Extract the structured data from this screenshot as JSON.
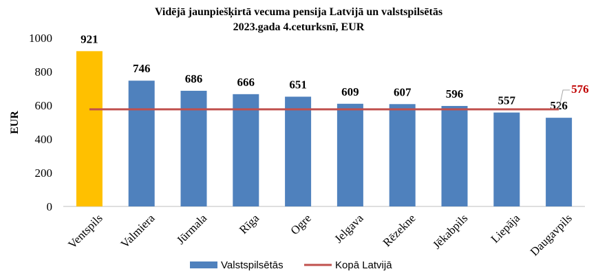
{
  "chart_data": {
    "type": "bar",
    "title": "Vidējā jaunpiešķirtā vecuma pensija Latvijā un valstspilsētās",
    "subtitle": "2023.gada 4.ceturksnī, EUR",
    "ylabel": "EUR",
    "xlabel": "",
    "ylim": [
      0,
      1000
    ],
    "yticks": [
      0,
      200,
      400,
      600,
      800,
      1000
    ],
    "categories": [
      "Ventspils",
      "Valmiera",
      "Jūrmala",
      "Rīga",
      "Ogre",
      "Jelgava",
      "Rēzekne",
      "Jēkabpils",
      "Liepāja",
      "Daugavpils"
    ],
    "series": [
      {
        "name": "Valstspilsētās",
        "values": [
          921,
          746,
          686,
          666,
          651,
          609,
          607,
          596,
          557,
          526
        ]
      }
    ],
    "reference_line": {
      "name": "Kopā Latvijā",
      "value": 576
    },
    "grid": false,
    "legend_position": "bottom",
    "colors": {
      "bar": "#4f81bd",
      "bar_highlight": "#ffc000",
      "line": "#c0504d",
      "line_label": "#c00000",
      "axis": "#bfbfbf"
    },
    "highlight_index": 0
  }
}
